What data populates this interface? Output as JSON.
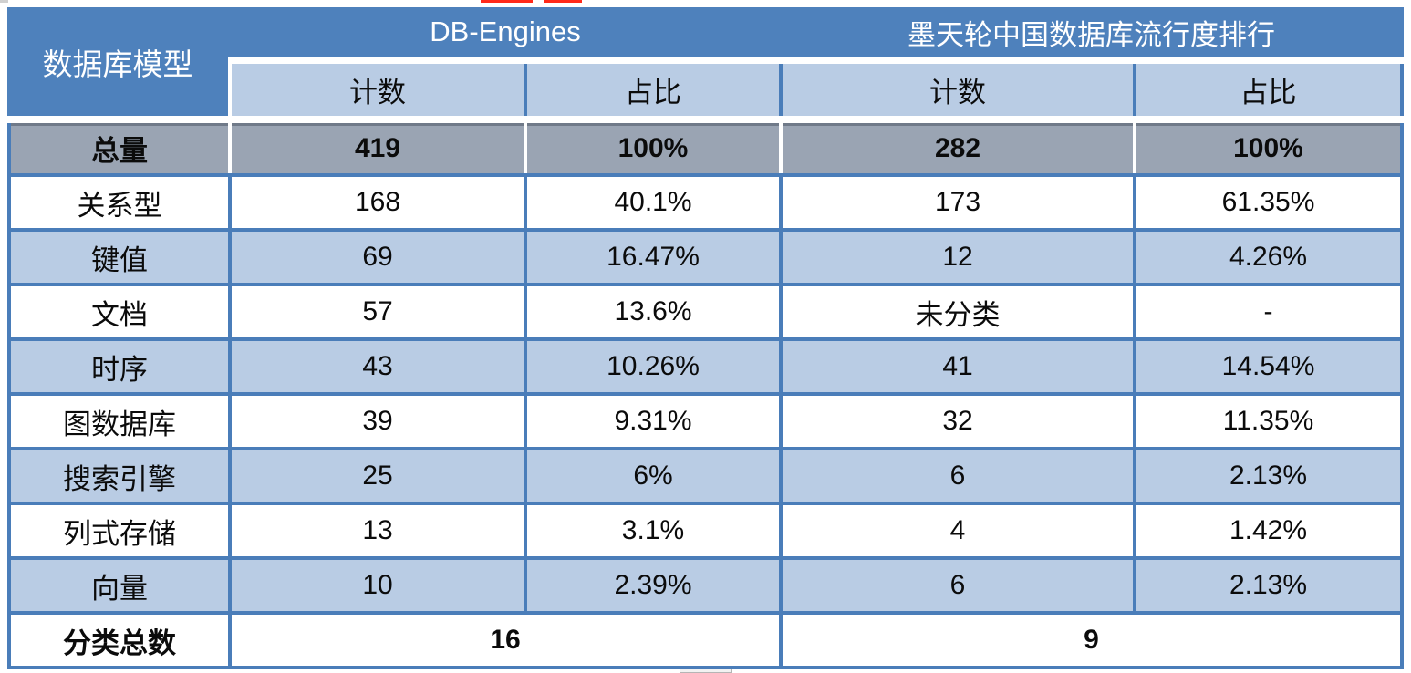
{
  "colors": {
    "header_blue": "#4E81BC",
    "border_blue": "#4A7DB9",
    "light_blue": "#B9CCE4",
    "total_row_gray": "#9AA4B3",
    "text_dark": "#0B0B0B",
    "header_text_white": "#FFFFFF",
    "artifact_red": "#FF2A1A"
  },
  "table": {
    "corner_header": "数据库模型",
    "group_headers": [
      {
        "label": "DB-Engines"
      },
      {
        "label": "墨天轮中国数据库流行度排行"
      }
    ],
    "sub_headers": [
      "计数",
      "占比",
      "计数",
      "占比"
    ],
    "rows": [
      {
        "model": "总量",
        "db_count": "419",
        "db_share": "100%",
        "mt_count": "282",
        "mt_share": "100%"
      },
      {
        "model": "关系型",
        "db_count": "168",
        "db_share": "40.1%",
        "mt_count": "173",
        "mt_share": "61.35%"
      },
      {
        "model": "键值",
        "db_count": "69",
        "db_share": "16.47%",
        "mt_count": "12",
        "mt_share": "4.26%"
      },
      {
        "model": "文档",
        "db_count": "57",
        "db_share": "13.6%",
        "mt_count": "未分类",
        "mt_share": "-"
      },
      {
        "model": "时序",
        "db_count": "43",
        "db_share": "10.26%",
        "mt_count": "41",
        "mt_share": "14.54%"
      },
      {
        "model": "图数据库",
        "db_count": "39",
        "db_share": "9.31%",
        "mt_count": "32",
        "mt_share": "11.35%"
      },
      {
        "model": "搜索引擎",
        "db_count": "25",
        "db_share": "6%",
        "mt_count": "6",
        "mt_share": "2.13%"
      },
      {
        "model": "列式存储",
        "db_count": "13",
        "db_share": "3.1%",
        "mt_count": "4",
        "mt_share": "1.42%"
      },
      {
        "model": "向量",
        "db_count": "10",
        "db_share": "2.39%",
        "mt_count": "6",
        "mt_share": "2.13%"
      }
    ],
    "footer": {
      "label": "分类总数",
      "db_engines_total": "16",
      "mt_total": "9"
    }
  },
  "chart_data": {
    "type": "table",
    "column_groups": [
      "数据库模型",
      "DB-Engines",
      "墨天轮中国数据库流行度排行"
    ],
    "columns": [
      "数据库模型",
      "DB-Engines 计数",
      "DB-Engines 占比",
      "墨天轮 计数",
      "墨天轮 占比"
    ],
    "rows": [
      [
        "总量",
        419,
        "100%",
        282,
        "100%"
      ],
      [
        "关系型",
        168,
        "40.1%",
        173,
        "61.35%"
      ],
      [
        "键值",
        69,
        "16.47%",
        12,
        "4.26%"
      ],
      [
        "文档",
        57,
        "13.6%",
        "未分类",
        "-"
      ],
      [
        "时序",
        43,
        "10.26%",
        41,
        "14.54%"
      ],
      [
        "图数据库",
        39,
        "9.31%",
        32,
        "11.35%"
      ],
      [
        "搜索引擎",
        25,
        "6%",
        6,
        "2.13%"
      ],
      [
        "列式存储",
        13,
        "3.1%",
        4,
        "1.42%"
      ],
      [
        "向量",
        10,
        "2.39%",
        6,
        "2.13%"
      ]
    ],
    "footer_row": [
      "分类总数",
      16,
      9
    ],
    "legend_position": "none",
    "grid": true
  }
}
